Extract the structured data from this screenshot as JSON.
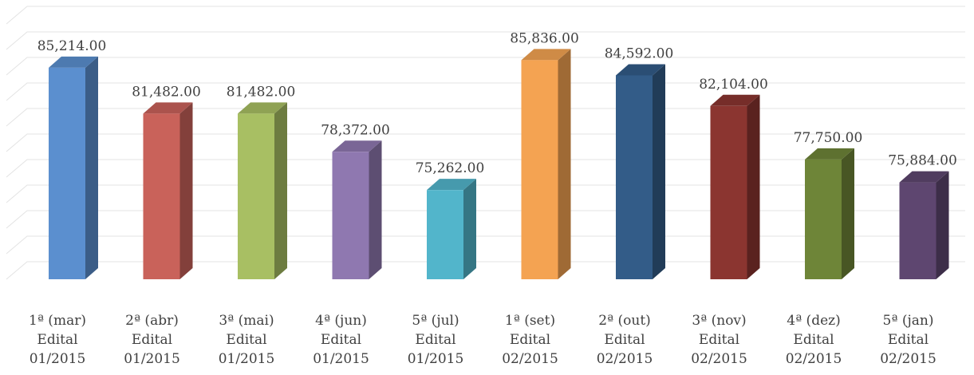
{
  "chart_data": {
    "type": "bar",
    "title": "",
    "xlabel": "",
    "ylabel": "",
    "ylim": [
      68000,
      88000
    ],
    "grid": true,
    "legend": "none",
    "three_d": true,
    "categories": [
      [
        "1ª (mar)",
        "Edital",
        "01/2015"
      ],
      [
        "2ª (abr)",
        "Edital",
        "01/2015"
      ],
      [
        "3ª (mai)",
        "Edital",
        "01/2015"
      ],
      [
        "4ª (jun)",
        "Edital",
        "01/2015"
      ],
      [
        "5ª (jul)",
        "Edital",
        "01/2015"
      ],
      [
        "1ª (set)",
        "Edital",
        "02/2015"
      ],
      [
        "2ª (out)",
        "Edital",
        "02/2015"
      ],
      [
        "3ª (nov)",
        "Edital",
        "02/2015"
      ],
      [
        "4ª (dez)",
        "Edital",
        "02/2015"
      ],
      [
        "5ª (jan)",
        "Edital",
        "02/2015"
      ]
    ],
    "values": [
      85214,
      81482,
      81482,
      78372,
      75262,
      85836,
      84592,
      82104,
      77750,
      75884
    ],
    "value_labels": [
      "85,214.00",
      "81,482.00",
      "81,482.00",
      "78,372.00",
      "75,262.00",
      "85,836.00",
      "84,592.00",
      "82,104.00",
      "77,750.00",
      "75,884.00"
    ],
    "colors": [
      "#5B8FCF",
      "#C9625A",
      "#A8BF63",
      "#8F78B0",
      "#52B5CB",
      "#F4A352",
      "#335C88",
      "#8B3530",
      "#6E8538",
      "#5E4670"
    ]
  }
}
